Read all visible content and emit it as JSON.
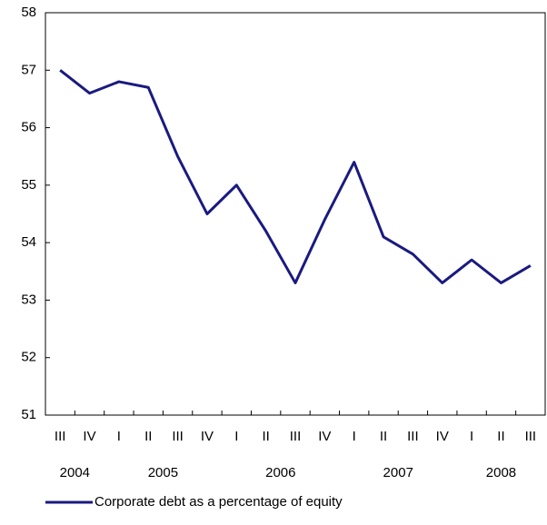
{
  "chart_data": {
    "type": "line",
    "categories": [
      "III",
      "IV",
      "I",
      "II",
      "III",
      "IV",
      "I",
      "II",
      "III",
      "IV",
      "I",
      "II",
      "III",
      "IV",
      "I",
      "II",
      "III"
    ],
    "year_labels": [
      "2004",
      null,
      "2005",
      null,
      null,
      null,
      "2006",
      null,
      null,
      null,
      "2007",
      null,
      null,
      null,
      "2008",
      null,
      null
    ],
    "series": [
      {
        "name": "Corporate debt as a percentage of equity",
        "color": "#1a1a80",
        "values": [
          57.0,
          56.6,
          56.8,
          56.7,
          55.5,
          54.5,
          55.0,
          54.2,
          53.3,
          54.4,
          55.4,
          54.1,
          53.8,
          53.3,
          53.7,
          53.3,
          53.6
        ]
      }
    ],
    "ylim": [
      51,
      58
    ],
    "yticks": [
      51,
      52,
      53,
      54,
      55,
      56,
      57,
      58
    ],
    "grid": false
  }
}
